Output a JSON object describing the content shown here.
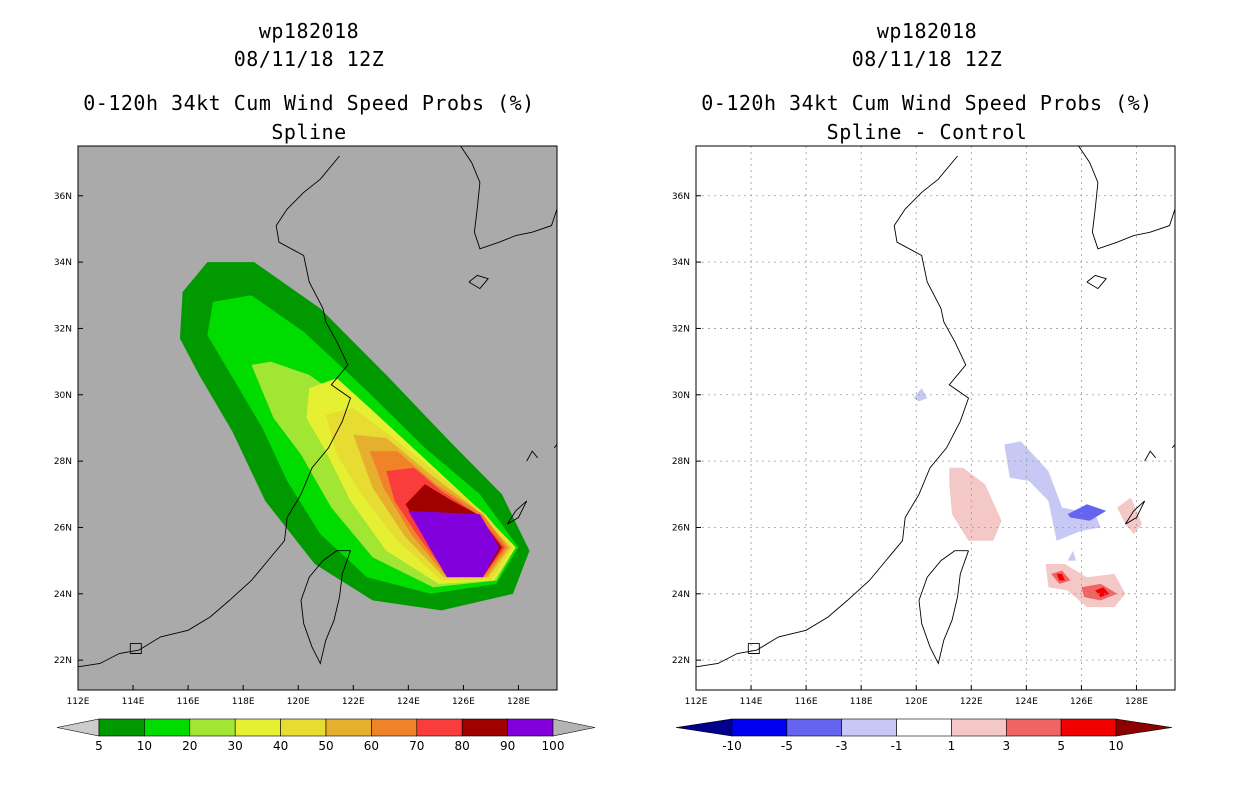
{
  "chart_data": [
    {
      "type": "heatmap",
      "storm_id": "wp182018",
      "date": "08/11/18 12Z",
      "title": "0-120h 34kt Cum Wind Speed Probs (%)",
      "subtitle": "Spline",
      "x_ticks": [
        "112E",
        "114E",
        "116E",
        "118E",
        "120E",
        "122E",
        "124E",
        "126E",
        "128E"
      ],
      "y_ticks": [
        "36N",
        "34N",
        "32N",
        "30N",
        "28N",
        "26N",
        "24N",
        "22N"
      ],
      "xlim": [
        112,
        129.4
      ],
      "ylim": [
        21.1,
        37.5
      ],
      "x_tick_values": [
        112,
        114,
        116,
        118,
        120,
        122,
        124,
        126,
        128
      ],
      "y_tick_values": [
        36,
        34,
        32,
        30,
        28,
        26,
        24,
        22
      ],
      "colorbar": {
        "labels": [
          "5",
          "10",
          "20",
          "30",
          "40",
          "50",
          "60",
          "70",
          "80",
          "90",
          "100"
        ],
        "colors": [
          "#cccccc",
          "#009a00",
          "#00dc00",
          "#a0e632",
          "#e6f032",
          "#e6dc32",
          "#e6af2d",
          "#f08228",
          "#fa3c3c",
          "#a00000",
          "#8200dc",
          "#b4b4b4"
        ]
      },
      "levels": [
        {
          "label": "5-10",
          "color": "#009a00",
          "outline": [
            [
              116.7,
              34.0
            ],
            [
              118.4,
              34.0
            ],
            [
              120.8,
              32.6
            ],
            [
              123.2,
              30.6
            ],
            [
              125.5,
              28.6
            ],
            [
              127.4,
              27.0
            ],
            [
              128.4,
              25.3
            ],
            [
              127.8,
              24.0
            ],
            [
              125.2,
              23.5
            ],
            [
              122.7,
              23.8
            ],
            [
              120.6,
              24.9
            ],
            [
              118.8,
              26.8
            ],
            [
              117.6,
              28.9
            ],
            [
              116.4,
              30.6
            ],
            [
              115.7,
              31.7
            ],
            [
              115.8,
              33.1
            ]
          ]
        },
        {
          "label": "10-20",
          "color": "#00dc00",
          "outline": [
            [
              116.9,
              32.8
            ],
            [
              118.3,
              33.0
            ],
            [
              120.2,
              31.9
            ],
            [
              122.4,
              30.2
            ],
            [
              124.6,
              28.4
            ],
            [
              126.6,
              27.0
            ],
            [
              128.0,
              25.4
            ],
            [
              127.2,
              24.3
            ],
            [
              124.8,
              24.0
            ],
            [
              122.5,
              24.5
            ],
            [
              120.8,
              25.8
            ],
            [
              119.6,
              27.4
            ],
            [
              118.7,
              29.0
            ],
            [
              117.7,
              30.4
            ],
            [
              116.7,
              31.8
            ]
          ]
        },
        {
          "label": "20-30",
          "color": "#a0e632",
          "outline": [
            [
              118.3,
              30.9
            ],
            [
              119.0,
              31.0
            ],
            [
              120.4,
              30.6
            ],
            [
              122.3,
              29.5
            ],
            [
              124.4,
              28.0
            ],
            [
              126.5,
              26.6
            ],
            [
              127.9,
              25.4
            ],
            [
              127.2,
              24.4
            ],
            [
              124.9,
              24.2
            ],
            [
              122.7,
              25.1
            ],
            [
              121.2,
              26.6
            ],
            [
              120.1,
              28.2
            ],
            [
              119.1,
              29.3
            ]
          ]
        },
        {
          "label": "30-40",
          "color": "#e6f032",
          "outline": [
            [
              120.4,
              30.2
            ],
            [
              121.4,
              30.5
            ],
            [
              122.6,
              29.6
            ],
            [
              124.3,
              28.3
            ],
            [
              126.5,
              26.6
            ],
            [
              127.9,
              25.4
            ],
            [
              127.1,
              24.4
            ],
            [
              125.1,
              24.3
            ],
            [
              123.2,
              25.3
            ],
            [
              121.9,
              26.8
            ],
            [
              121.0,
              28.3
            ],
            [
              120.3,
              29.3
            ]
          ]
        },
        {
          "label": "40-50",
          "color": "#e6dc32",
          "outline": [
            [
              121.0,
              29.4
            ],
            [
              122.0,
              29.6
            ],
            [
              123.3,
              28.8
            ],
            [
              125.1,
              27.6
            ],
            [
              126.8,
              26.4
            ],
            [
              127.8,
              25.4
            ],
            [
              127.0,
              24.4
            ],
            [
              125.2,
              24.4
            ],
            [
              123.6,
              25.6
            ],
            [
              122.3,
              27.0
            ],
            [
              121.4,
              28.2
            ]
          ]
        },
        {
          "label": "50-60",
          "color": "#e6af2d",
          "outline": [
            [
              122.0,
              28.8
            ],
            [
              123.2,
              28.7
            ],
            [
              124.8,
              27.6
            ],
            [
              126.4,
              26.6
            ],
            [
              127.7,
              25.4
            ],
            [
              126.9,
              24.5
            ],
            [
              125.3,
              24.5
            ],
            [
              123.9,
              25.7
            ],
            [
              122.7,
              27.2
            ]
          ]
        },
        {
          "label": "60-70",
          "color": "#f08228",
          "outline": [
            [
              122.6,
              28.3
            ],
            [
              123.6,
              28.3
            ],
            [
              125.0,
              27.3
            ],
            [
              126.7,
              26.4
            ],
            [
              127.6,
              25.4
            ],
            [
              126.8,
              24.5
            ],
            [
              125.3,
              24.6
            ],
            [
              124.1,
              25.8
            ],
            [
              123.1,
              27.2
            ]
          ]
        },
        {
          "label": "70-80",
          "color": "#fa3c3c",
          "outline": [
            [
              123.2,
              27.7
            ],
            [
              124.2,
              27.8
            ],
            [
              125.2,
              27.1
            ],
            [
              126.5,
              26.4
            ],
            [
              127.5,
              25.4
            ],
            [
              126.7,
              24.5
            ],
            [
              125.3,
              24.7
            ],
            [
              124.3,
              25.8
            ],
            [
              123.5,
              26.8
            ]
          ]
        },
        {
          "label": "80-90",
          "color": "#a00000",
          "outline": [
            [
              123.9,
              26.7
            ],
            [
              124.6,
              27.3
            ],
            [
              125.6,
              26.8
            ],
            [
              126.5,
              26.4
            ],
            [
              127.4,
              25.4
            ],
            [
              126.7,
              24.5
            ],
            [
              125.3,
              24.8
            ],
            [
              124.6,
              25.7
            ]
          ]
        },
        {
          "label": "90-100",
          "color": "#8200dc",
          "outline": [
            [
              124.0,
              26.5
            ],
            [
              126.6,
              26.4
            ],
            [
              127.3,
              25.4
            ],
            [
              126.7,
              24.5
            ],
            [
              125.4,
              24.5
            ]
          ]
        }
      ]
    },
    {
      "type": "heatmap",
      "storm_id": "wp182018",
      "date": "08/11/18 12Z",
      "title": "0-120h 34kt Cum Wind Speed Probs (%)",
      "subtitle": "Spline - Control",
      "x_ticks": [
        "112E",
        "114E",
        "116E",
        "118E",
        "120E",
        "122E",
        "124E",
        "126E",
        "128E"
      ],
      "y_ticks": [
        "36N",
        "34N",
        "32N",
        "30N",
        "28N",
        "26N",
        "24N",
        "22N"
      ],
      "xlim": [
        112,
        129.4
      ],
      "ylim": [
        21.1,
        37.5
      ],
      "x_tick_values": [
        112,
        114,
        116,
        118,
        120,
        122,
        124,
        126,
        128
      ],
      "y_tick_values": [
        36,
        34,
        32,
        30,
        28,
        26,
        24,
        22
      ],
      "colorbar": {
        "labels": [
          "-10",
          "-5",
          "-3",
          "-1",
          "1",
          "3",
          "5",
          "10"
        ],
        "colors": [
          "#00008c",
          "#0000f0",
          "#6464f0",
          "#c8c8f5",
          "#ffffff",
          "#f5c8c8",
          "#f06464",
          "#f00000",
          "#8c0000"
        ]
      },
      "levels": [
        {
          "label": "-3 to -1",
          "color": "#c8c8f5",
          "outline": [
            [
              123.2,
              28.5
            ],
            [
              123.8,
              28.6
            ],
            [
              124.8,
              27.7
            ],
            [
              125.3,
              26.6
            ],
            [
              126.5,
              26.4
            ],
            [
              126.7,
              26.0
            ],
            [
              126.0,
              25.9
            ],
            [
              125.1,
              25.6
            ],
            [
              124.8,
              26.8
            ],
            [
              124.1,
              27.4
            ],
            [
              123.4,
              27.5
            ]
          ]
        },
        {
          "label": "-3 to -1",
          "color": "#c8c8f5",
          "outline": [
            [
              119.9,
              29.9
            ],
            [
              120.2,
              30.2
            ],
            [
              120.4,
              29.9
            ],
            [
              120.1,
              29.8
            ]
          ]
        },
        {
          "label": "-3 to -1",
          "color": "#c8c8f5",
          "outline": [
            [
              125.5,
              25.0
            ],
            [
              125.7,
              25.3
            ],
            [
              125.8,
              25.0
            ]
          ]
        },
        {
          "label": "-5 to -3",
          "color": "#6464f0",
          "outline": [
            [
              125.5,
              26.4
            ],
            [
              126.2,
              26.7
            ],
            [
              126.9,
              26.5
            ],
            [
              126.3,
              26.2
            ],
            [
              125.6,
              26.3
            ]
          ]
        },
        {
          "label": "1 to 3",
          "color": "#f5c8c8",
          "outline": [
            [
              121.2,
              27.8
            ],
            [
              121.7,
              27.8
            ],
            [
              122.5,
              27.3
            ],
            [
              123.1,
              26.2
            ],
            [
              122.8,
              25.6
            ],
            [
              121.9,
              25.6
            ],
            [
              121.3,
              26.4
            ],
            [
              121.2,
              27.3
            ]
          ]
        },
        {
          "label": "1 to 3",
          "color": "#f5c8c8",
          "outline": [
            [
              127.3,
              26.6
            ],
            [
              127.8,
              26.9
            ],
            [
              128.2,
              26.1
            ],
            [
              127.9,
              25.8
            ],
            [
              127.6,
              26.1
            ]
          ]
        },
        {
          "label": "1 to 3",
          "color": "#f5c8c8",
          "outline": [
            [
              124.7,
              24.9
            ],
            [
              125.4,
              24.9
            ],
            [
              126.2,
              24.5
            ],
            [
              127.2,
              24.6
            ],
            [
              127.6,
              24.0
            ],
            [
              127.2,
              23.6
            ],
            [
              126.2,
              23.6
            ],
            [
              125.5,
              24.1
            ],
            [
              124.8,
              24.2
            ]
          ]
        },
        {
          "label": "3 to 5",
          "color": "#f06464",
          "outline": [
            [
              124.9,
              24.6
            ],
            [
              125.3,
              24.7
            ],
            [
              125.6,
              24.4
            ],
            [
              125.2,
              24.3
            ]
          ]
        },
        {
          "label": "3 to 5",
          "color": "#f06464",
          "outline": [
            [
              126.0,
              24.2
            ],
            [
              126.7,
              24.3
            ],
            [
              127.3,
              24.0
            ],
            [
              126.7,
              23.8
            ],
            [
              126.1,
              23.9
            ]
          ]
        },
        {
          "label": "5 to 10",
          "color": "#f00000",
          "outline": [
            [
              125.1,
              24.6
            ],
            [
              125.3,
              24.6
            ],
            [
              125.4,
              24.4
            ],
            [
              125.2,
              24.4
            ]
          ]
        },
        {
          "label": "5 to 10",
          "color": "#f00000",
          "outline": [
            [
              126.5,
              24.1
            ],
            [
              126.8,
              24.2
            ],
            [
              127.0,
              24.0
            ],
            [
              126.7,
              23.9
            ]
          ]
        }
      ]
    }
  ]
}
